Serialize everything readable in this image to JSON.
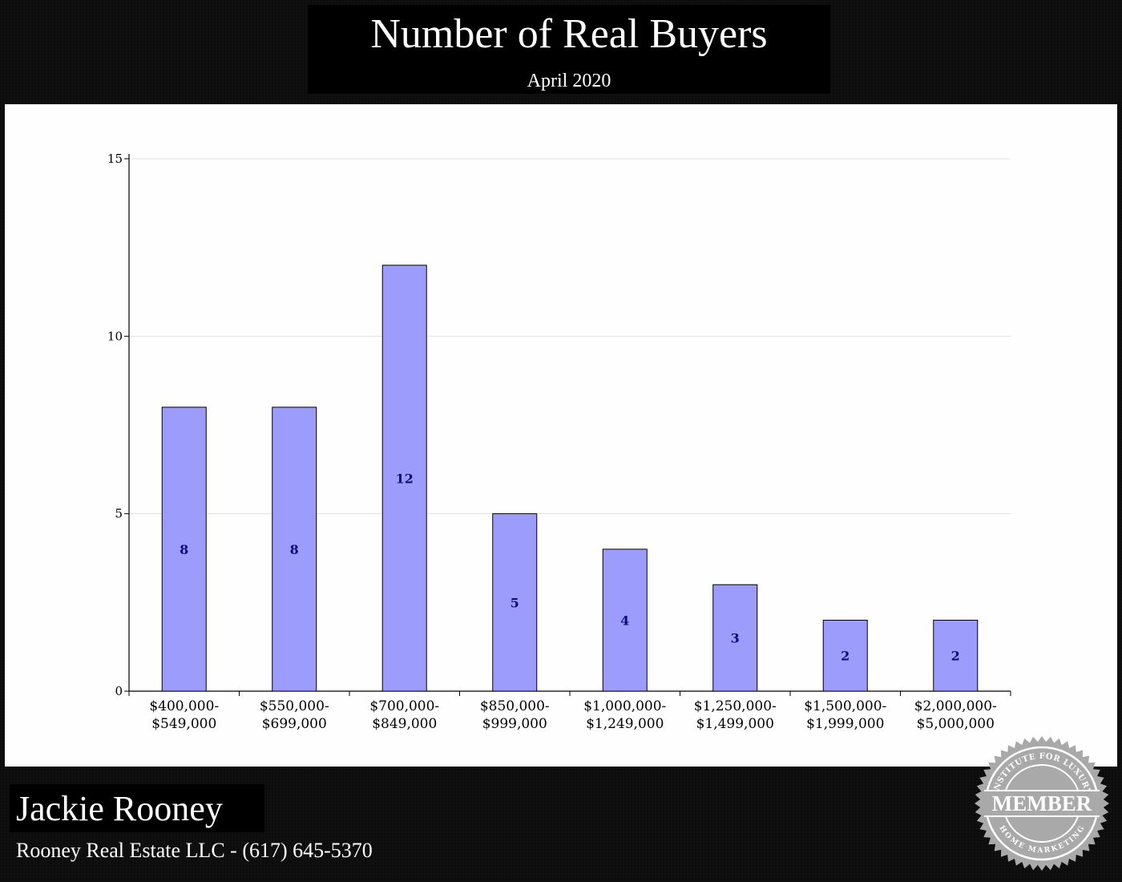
{
  "header": {
    "title": "Number of Real Buyers",
    "subtitle": "April 2020"
  },
  "chart_data": {
    "type": "bar",
    "categories": [
      [
        "$400,000-",
        "$549,000"
      ],
      [
        "$550,000-",
        "$699,000"
      ],
      [
        "$700,000-",
        "$849,000"
      ],
      [
        "$850,000-",
        "$999,000"
      ],
      [
        "$1,000,000-",
        "$1,249,000"
      ],
      [
        "$1,250,000-",
        "$1,499,000"
      ],
      [
        "$1,500,000-",
        "$1,999,000"
      ],
      [
        "$2,000,000-",
        "$5,000,000"
      ]
    ],
    "values": [
      8,
      8,
      12,
      5,
      4,
      3,
      2,
      2
    ],
    "data_labels": [
      "8",
      "8",
      "12",
      "5",
      "4",
      "3",
      "2",
      "2"
    ],
    "ylim": [
      0,
      15
    ],
    "yticks": [
      0,
      5,
      10,
      15
    ],
    "ytick_labels": [
      "0",
      "5",
      "10",
      "15"
    ],
    "grid": true,
    "bar_color": "#9c9cfc",
    "label_color": "#0a0a80"
  },
  "footer": {
    "agent_name": "Jackie Rooney",
    "agent_company_phone": "Rooney Real Estate LLC - (617) 645-5370"
  },
  "badge": {
    "top_text": "INSTITUTE FOR LUXURY",
    "center_text": "MEMBER",
    "bottom_text": "HOME MARKETING"
  }
}
